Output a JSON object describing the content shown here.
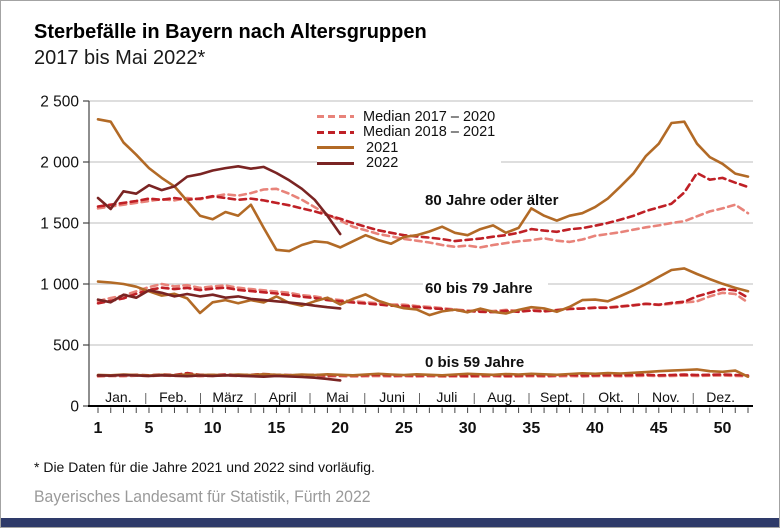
{
  "header": {
    "title": "Sterbefälle in Bayern nach Altersgruppen",
    "subtitle": "2017 bis Mai 2022*"
  },
  "footnote": {
    "text": "* Die Daten für die Jahre 2021 und 2022 sind vorläufig."
  },
  "source": {
    "text": "Bayerisches Landesamt für Statistik, Fürth 2022"
  },
  "colors": {
    "median_2017_2020": "#e8837a",
    "median_2018_2021": "#bf2026",
    "year_2021": "#b26a26",
    "year_2022": "#7a2423",
    "gridline": "#c9c9c9",
    "footer_bar": "#2e3a69",
    "source_gray": "#9a9a9a"
  },
  "chart_data": {
    "type": "line",
    "title": "Sterbefälle in Bayern nach Altersgruppen",
    "subtitle": "2017 bis Mai 2022*",
    "ylim": [
      0,
      2500
    ],
    "ytick_labels": [
      "0",
      "500",
      "1 000",
      "1 500",
      "2 000",
      "2 500"
    ],
    "x_tick_weeks": [
      1,
      5,
      10,
      15,
      20,
      25,
      30,
      35,
      40,
      45,
      50
    ],
    "months": [
      "Jan.",
      "Feb.",
      "März",
      "April",
      "Mai",
      "Juni",
      "Juli",
      "Aug.",
      "Sept.",
      "Okt.",
      "Nov.",
      "Dez."
    ],
    "grid": true,
    "legend_position": "top-center",
    "legend": [
      {
        "label": "Median 2017 – 2020",
        "color": "#e8837a",
        "dash": true
      },
      {
        "label": "Median 2018 – 2021",
        "color": "#bf2026",
        "dash": true
      },
      {
        "label": "2021",
        "color": "#b26a26",
        "dash": false
      },
      {
        "label": "2022",
        "color": "#7a2423",
        "dash": false
      }
    ],
    "groups": [
      {
        "label": "80 Jahre oder älter",
        "series": [
          {
            "name": "Median 2017 – 2020",
            "color": "#e8837a",
            "dash": true,
            "values": [
              1620,
              1635,
              1650,
              1665,
              1680,
              1695,
              1685,
              1705,
              1695,
              1715,
              1735,
              1725,
              1745,
              1775,
              1780,
              1740,
              1690,
              1630,
              1570,
              1520,
              1470,
              1440,
              1410,
              1390,
              1370,
              1355,
              1340,
              1320,
              1305,
              1315,
              1300,
              1320,
              1335,
              1350,
              1360,
              1375,
              1355,
              1345,
              1365,
              1395,
              1410,
              1425,
              1445,
              1465,
              1480,
              1500,
              1515,
              1555,
              1595,
              1620,
              1650,
              1580
            ]
          },
          {
            "name": "Median 2018 – 2021",
            "color": "#bf2026",
            "dash": true,
            "values": [
              1635,
              1650,
              1665,
              1680,
              1700,
              1690,
              1705,
              1690,
              1700,
              1720,
              1705,
              1690,
              1700,
              1685,
              1665,
              1645,
              1620,
              1595,
              1565,
              1535,
              1500,
              1470,
              1440,
              1420,
              1400,
              1390,
              1380,
              1368,
              1352,
              1362,
              1372,
              1388,
              1400,
              1420,
              1450,
              1438,
              1428,
              1448,
              1458,
              1478,
              1500,
              1528,
              1558,
              1598,
              1628,
              1658,
              1750,
              1910,
              1855,
              1870,
              1830,
              1795
            ]
          },
          {
            "name": "2021",
            "color": "#b26a26",
            "dash": false,
            "values": [
              2350,
              2330,
              2160,
              2060,
              1950,
              1870,
              1800,
              1680,
              1560,
              1530,
              1590,
              1560,
              1650,
              1460,
              1280,
              1270,
              1320,
              1350,
              1340,
              1300,
              1350,
              1400,
              1360,
              1330,
              1385,
              1400,
              1430,
              1470,
              1420,
              1400,
              1450,
              1480,
              1420,
              1460,
              1620,
              1560,
              1520,
              1560,
              1580,
              1630,
              1700,
              1800,
              1905,
              2050,
              2150,
              2320,
              2330,
              2150,
              2040,
              1985,
              1905,
              1880
            ]
          },
          {
            "name": "2022",
            "color": "#7a2423",
            "dash": false,
            "values": [
              1705,
              1615,
              1760,
              1740,
              1810,
              1770,
              1800,
              1880,
              1900,
              1930,
              1950,
              1965,
              1945,
              1960,
              1910,
              1850,
              1780,
              1690,
              1560,
              1410
            ]
          }
        ]
      },
      {
        "label": "60 bis 79 Jahre",
        "series": [
          {
            "name": "Median 2017 – 2020",
            "color": "#e8837a",
            "dash": true,
            "values": [
              860,
              885,
              905,
              940,
              975,
              1000,
              980,
              990,
              968,
              980,
              988,
              970,
              958,
              948,
              938,
              928,
              908,
              898,
              880,
              868,
              858,
              850,
              842,
              832,
              830,
              820,
              812,
              802,
              792,
              782,
              780,
              778,
              788,
              780,
              788,
              780,
              788,
              798,
              800,
              808,
              808,
              818,
              828,
              838,
              828,
              838,
              848,
              858,
              898,
              928,
              918,
              848
            ]
          },
          {
            "name": "Median 2018 – 2021",
            "color": "#bf2026",
            "dash": true,
            "values": [
              842,
              862,
              882,
              920,
              952,
              970,
              958,
              968,
              950,
              962,
              970,
              952,
              942,
              932,
              922,
              910,
              895,
              885,
              868,
              858,
              848,
              840,
              832,
              822,
              820,
              812,
              802,
              795,
              785,
              778,
              772,
              770,
              780,
              772,
              782,
              775,
              785,
              795,
              798,
              805,
              805,
              815,
              825,
              838,
              830,
              845,
              855,
              898,
              928,
              958,
              948,
              888
            ]
          },
          {
            "name": "2021",
            "color": "#b26a26",
            "dash": false,
            "values": [
              1020,
              1012,
              1000,
              978,
              940,
              905,
              920,
              882,
              762,
              850,
              868,
              842,
              868,
              848,
              898,
              845,
              822,
              858,
              888,
              832,
              878,
              915,
              862,
              828,
              802,
              792,
              745,
              775,
              790,
              768,
              798,
              772,
              758,
              788,
              810,
              800,
              772,
              812,
              868,
              872,
              858,
              902,
              948,
              1000,
              1058,
              1115,
              1128,
              1082,
              1040,
              1002,
              968,
              940
            ]
          },
          {
            "name": "2022",
            "color": "#7a2423",
            "dash": false,
            "values": [
              872,
              850,
              912,
              888,
              948,
              928,
              898,
              918,
              898,
              912,
              888,
              898,
              878,
              868,
              858,
              848,
              838,
              822,
              810,
              800
            ]
          }
        ]
      },
      {
        "label": "0 bis 59 Jahre",
        "series": [
          {
            "name": "Median 2017 – 2020",
            "color": "#e8837a",
            "dash": true,
            "values": [
              242,
              246,
              244,
              248,
              245,
              250,
              246,
              248,
              244,
              247,
              250,
              246,
              248,
              252,
              248,
              246,
              244,
              246,
              243,
              245,
              242,
              244,
              246,
              243,
              245,
              242,
              244,
              241,
              243,
              240,
              242,
              244,
              241,
              243,
              245,
              242,
              244,
              246,
              243,
              245,
              247,
              244,
              246,
              248,
              245,
              247,
              249,
              246,
              248,
              250,
              247,
              244
            ]
          },
          {
            "name": "Median 2018 – 2021",
            "color": "#bf2026",
            "dash": true,
            "values": [
              248,
              252,
              250,
              256,
              252,
              258,
              254,
              270,
              256,
              254,
              258,
              254,
              256,
              262,
              256,
              254,
              252,
              256,
              250,
              252,
              250,
              252,
              254,
              250,
              252,
              250,
              252,
              248,
              250,
              248,
              250,
              252,
              248,
              250,
              252,
              250,
              252,
              254,
              250,
              252,
              254,
              252,
              254,
              256,
              252,
              254,
              257,
              254,
              256,
              258,
              254,
              250
            ]
          },
          {
            "name": "2021",
            "color": "#b26a26",
            "dash": false,
            "values": [
              255,
              252,
              258,
              254,
              250,
              256,
              252,
              258,
              254,
              256,
              252,
              258,
              254,
              260,
              256,
              252,
              258,
              254,
              260,
              256,
              252,
              258,
              264,
              258,
              254,
              260,
              256,
              252,
              258,
              264,
              260,
              256,
              262,
              258,
              264,
              260,
              256,
              262,
              268,
              264,
              270,
              266,
              272,
              278,
              285,
              290,
              295,
              300,
              285,
              280,
              290,
              240
            ]
          },
          {
            "name": "2022",
            "color": "#7a2423",
            "dash": false,
            "values": [
              252,
              248,
              254,
              250,
              246,
              252,
              248,
              244,
              250,
              246,
              252,
              248,
              244,
              240,
              246,
              242,
              238,
              232,
              222,
              210
            ]
          }
        ]
      }
    ]
  }
}
